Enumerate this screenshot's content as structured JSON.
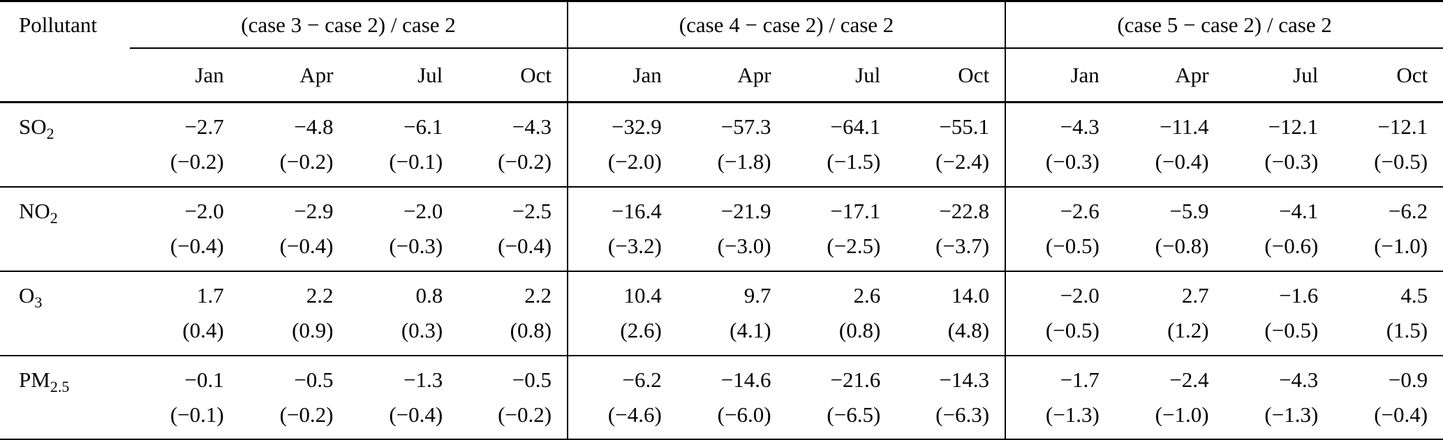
{
  "page": {
    "background_color": "#ffffff",
    "text_color": "#000000"
  },
  "table": {
    "corner_header": "Pollutant",
    "groups": [
      {
        "label": "(case 3 − case 2) / case 2",
        "months": [
          "Jan",
          "Apr",
          "Jul",
          "Oct"
        ]
      },
      {
        "label": "(case 4 − case 2) / case 2",
        "months": [
          "Jan",
          "Apr",
          "Jul",
          "Oct"
        ]
      },
      {
        "label": "(case 5 − case 2) / case 2",
        "months": [
          "Jan",
          "Apr",
          "Jul",
          "Oct"
        ]
      }
    ],
    "rows": [
      {
        "pollutant": {
          "base": "SO",
          "sub": "2"
        },
        "cells": [
          {
            "value": "−2.7",
            "paren": "(−0.2)"
          },
          {
            "value": "−4.8",
            "paren": "(−0.2)"
          },
          {
            "value": "−6.1",
            "paren": "(−0.1)"
          },
          {
            "value": "−4.3",
            "paren": "(−0.2)"
          },
          {
            "value": "−32.9",
            "paren": "(−2.0)"
          },
          {
            "value": "−57.3",
            "paren": "(−1.8)"
          },
          {
            "value": "−64.1",
            "paren": "(−1.5)"
          },
          {
            "value": "−55.1",
            "paren": "(−2.4)"
          },
          {
            "value": "−4.3",
            "paren": "(−0.3)"
          },
          {
            "value": "−11.4",
            "paren": "(−0.4)"
          },
          {
            "value": "−12.1",
            "paren": "(−0.3)"
          },
          {
            "value": "−12.1",
            "paren": "(−0.5)"
          }
        ]
      },
      {
        "pollutant": {
          "base": "NO",
          "sub": "2"
        },
        "cells": [
          {
            "value": "−2.0",
            "paren": "(−0.4)"
          },
          {
            "value": "−2.9",
            "paren": "(−0.4)"
          },
          {
            "value": "−2.0",
            "paren": "(−0.3)"
          },
          {
            "value": "−2.5",
            "paren": "(−0.4)"
          },
          {
            "value": "−16.4",
            "paren": "(−3.2)"
          },
          {
            "value": "−21.9",
            "paren": "(−3.0)"
          },
          {
            "value": "−17.1",
            "paren": "(−2.5)"
          },
          {
            "value": "−22.8",
            "paren": "(−3.7)"
          },
          {
            "value": "−2.6",
            "paren": "(−0.5)"
          },
          {
            "value": "−5.9",
            "paren": "(−0.8)"
          },
          {
            "value": "−4.1",
            "paren": "(−0.6)"
          },
          {
            "value": "−6.2",
            "paren": "(−1.0)"
          }
        ]
      },
      {
        "pollutant": {
          "base": "O",
          "sub": "3"
        },
        "cells": [
          {
            "value": "1.7",
            "paren": "(0.4)"
          },
          {
            "value": "2.2",
            "paren": "(0.9)"
          },
          {
            "value": "0.8",
            "paren": "(0.3)"
          },
          {
            "value": "2.2",
            "paren": "(0.8)"
          },
          {
            "value": "10.4",
            "paren": "(2.6)"
          },
          {
            "value": "9.7",
            "paren": "(4.1)"
          },
          {
            "value": "2.6",
            "paren": "(0.8)"
          },
          {
            "value": "14.0",
            "paren": "(4.8)"
          },
          {
            "value": "−2.0",
            "paren": "(−0.5)"
          },
          {
            "value": "2.7",
            "paren": "(1.2)"
          },
          {
            "value": "−1.6",
            "paren": "(−0.5)"
          },
          {
            "value": "4.5",
            "paren": "(1.5)"
          }
        ]
      },
      {
        "pollutant": {
          "base": "PM",
          "sub": "2.5"
        },
        "cells": [
          {
            "value": "−0.1",
            "paren": "(−0.1)"
          },
          {
            "value": "−0.5",
            "paren": "(−0.2)"
          },
          {
            "value": "−1.3",
            "paren": "(−0.4)"
          },
          {
            "value": "−0.5",
            "paren": "(−0.2)"
          },
          {
            "value": "−6.2",
            "paren": "(−4.6)"
          },
          {
            "value": "−14.6",
            "paren": "(−6.0)"
          },
          {
            "value": "−21.6",
            "paren": "(−6.5)"
          },
          {
            "value": "−14.3",
            "paren": "(−6.3)"
          },
          {
            "value": "−1.7",
            "paren": "(−1.3)"
          },
          {
            "value": "−2.4",
            "paren": "(−1.0)"
          },
          {
            "value": "−4.3",
            "paren": "(−1.3)"
          },
          {
            "value": "−0.9",
            "paren": "(−0.4)"
          }
        ]
      }
    ]
  }
}
